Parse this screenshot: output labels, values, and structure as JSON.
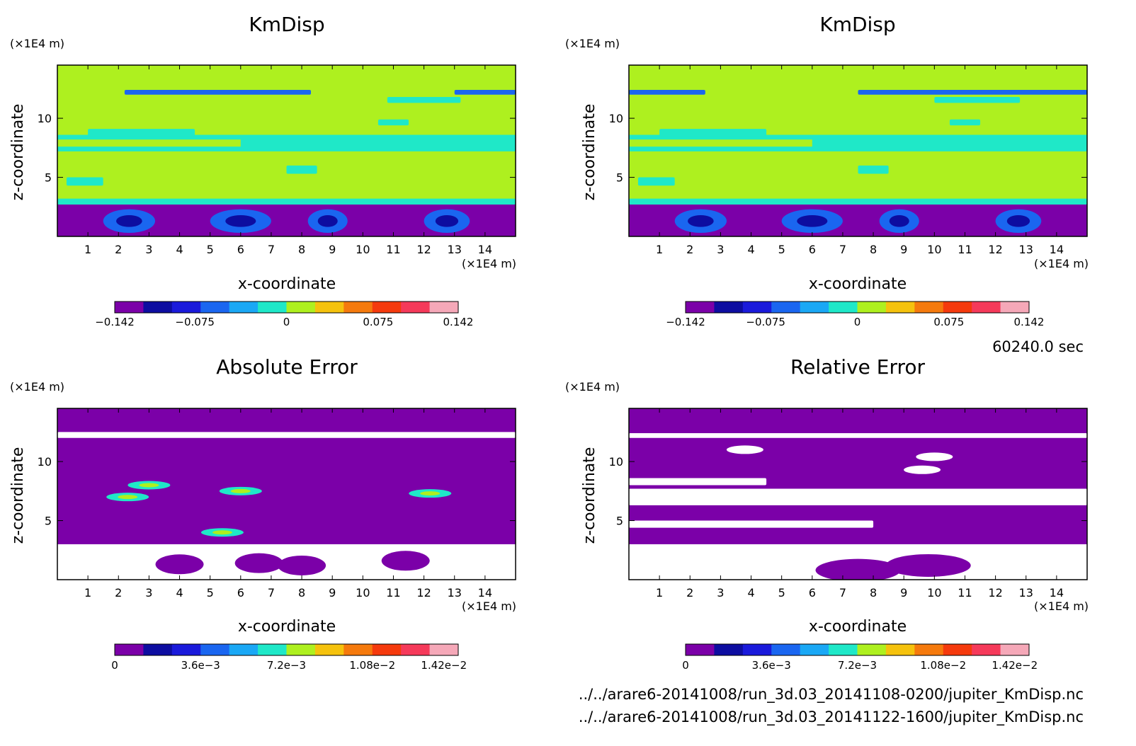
{
  "colors": {
    "levels": [
      "#7b00a8",
      "#0d0da0",
      "#1a1adb",
      "#1a66f0",
      "#1aa8f5",
      "#1fe8c8",
      "#aef01f",
      "#f5c20d",
      "#f57a0d",
      "#f53a0d",
      "#f53a5a",
      "#f5a8b8"
    ],
    "purple": "#7b00a8",
    "cyan": "#1fe8c8",
    "lime": "#aef01f",
    "blue": "#1a66f0",
    "navy": "#0d0da0",
    "white": "#ffffff"
  },
  "footer": {
    "time": "60240.0 sec",
    "file1": "../../arare6-20141008/run_3d.03_20141108-0200/jupiter_KmDisp.nc",
    "file2": "../../arare6-20141008/run_3d.03_20141122-1600/jupiter_KmDisp.nc"
  },
  "chart_data": [
    {
      "type": "heatmap",
      "title": "KmDisp",
      "xlabel": "x-coordinate",
      "ylabel": "z-coordinate",
      "x_unit": "(×1E4 m)",
      "y_unit": "(×1E4 m)",
      "xlim": [
        0,
        15
      ],
      "ylim": [
        0,
        14.5
      ],
      "x_ticks": [
        "1",
        "2",
        "3",
        "4",
        "5",
        "6",
        "7",
        "8",
        "9",
        "10",
        "11",
        "12",
        "13",
        "14"
      ],
      "y_ticks": [
        "5",
        "10"
      ],
      "colorbar_labels": [
        "−0.142",
        "−0.075",
        "0",
        "0.075",
        "0.142"
      ],
      "colorbar_range": [
        -0.142,
        0.142
      ],
      "lower_layer_top": 3.0
    },
    {
      "type": "heatmap",
      "title": "KmDisp",
      "xlabel": "x-coordinate",
      "ylabel": "z-coordinate",
      "x_unit": "(×1E4 m)",
      "y_unit": "(×1E4 m)",
      "xlim": [
        0,
        15
      ],
      "ylim": [
        0,
        14.5
      ],
      "x_ticks": [
        "1",
        "2",
        "3",
        "4",
        "5",
        "6",
        "7",
        "8",
        "9",
        "10",
        "11",
        "12",
        "13",
        "14"
      ],
      "y_ticks": [
        "5",
        "10"
      ],
      "colorbar_labels": [
        "−0.142",
        "−0.075",
        "0",
        "0.075",
        "0.142"
      ],
      "colorbar_range": [
        -0.142,
        0.142
      ],
      "lower_layer_top": 3.0
    },
    {
      "type": "heatmap",
      "title": "Absolute Error",
      "xlabel": "x-coordinate",
      "ylabel": "z-coordinate",
      "x_unit": "(×1E4 m)",
      "y_unit": "(×1E4 m)",
      "xlim": [
        0,
        15
      ],
      "ylim": [
        0,
        14.5
      ],
      "x_ticks": [
        "1",
        "2",
        "3",
        "4",
        "5",
        "6",
        "7",
        "8",
        "9",
        "10",
        "11",
        "12",
        "13",
        "14"
      ],
      "y_ticks": [
        "5",
        "10"
      ],
      "colorbar_labels": [
        "0",
        "3.6e−3",
        "7.2e−3",
        "1.08e−2",
        "1.42e−2"
      ],
      "colorbar_range": [
        0,
        0.0142
      ],
      "lower_layer_top": 3.0
    },
    {
      "type": "heatmap",
      "title": "Relative Error",
      "xlabel": "x-coordinate",
      "ylabel": "z-coordinate",
      "x_unit": "(×1E4 m)",
      "y_unit": "(×1E4 m)",
      "xlim": [
        0,
        15
      ],
      "ylim": [
        0,
        14.5
      ],
      "x_ticks": [
        "1",
        "2",
        "3",
        "4",
        "5",
        "6",
        "7",
        "8",
        "9",
        "10",
        "11",
        "12",
        "13",
        "14"
      ],
      "y_ticks": [
        "5",
        "10"
      ],
      "colorbar_labels": [
        "0",
        "3.6e−3",
        "7.2e−3",
        "1.08e−2",
        "1.42e−2"
      ],
      "colorbar_range": [
        0,
        0.0142
      ],
      "lower_layer_top": 3.0
    }
  ]
}
